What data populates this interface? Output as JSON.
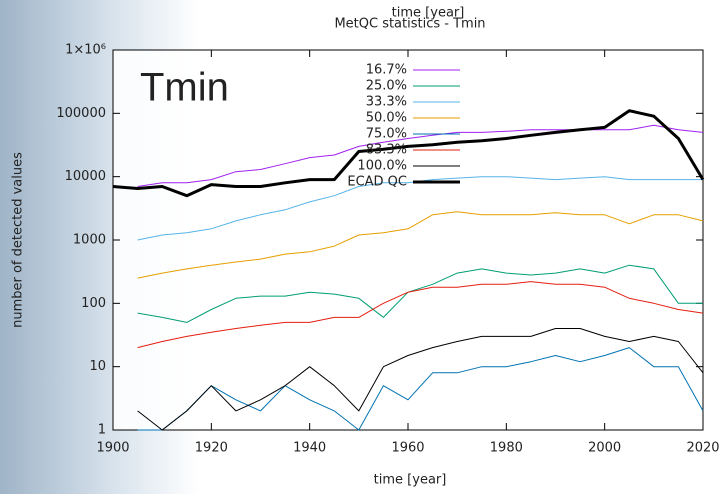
{
  "chart_data": {
    "type": "line",
    "title": "MetQC statistics - Tmin",
    "top_axis_label": "time [year]",
    "x_label": "time [year]",
    "y_label": "number of detected values",
    "annotation": "Tmin",
    "log_y": true,
    "grid": false,
    "legend": "top",
    "x": [
      1900,
      1905,
      1910,
      1915,
      1920,
      1925,
      1930,
      1935,
      1940,
      1945,
      1950,
      1955,
      1960,
      1965,
      1970,
      1975,
      1980,
      1985,
      1990,
      1995,
      2000,
      2005,
      2010,
      2015,
      2020
    ],
    "series": [
      {
        "name": "16.7%",
        "color": "#a020f0",
        "width": 1,
        "values": [
          null,
          7000,
          8000,
          8000,
          9000,
          12000,
          13000,
          16000,
          20000,
          22000,
          30000,
          35000,
          40000,
          45000,
          50000,
          50000,
          52000,
          55000,
          55000,
          55000,
          55000,
          55000,
          65000,
          55000,
          50000
        ]
      },
      {
        "name": "25.0%",
        "color": "#009e73",
        "width": 1,
        "values": [
          null,
          70,
          60,
          50,
          80,
          120,
          130,
          130,
          150,
          140,
          120,
          60,
          150,
          200,
          300,
          350,
          300,
          280,
          300,
          350,
          300,
          400,
          350,
          100,
          100
        ]
      },
      {
        "name": "33.3%",
        "color": "#56b4e9",
        "width": 1,
        "values": [
          null,
          1000,
          1200,
          1300,
          1500,
          2000,
          2500,
          3000,
          4000,
          5000,
          7000,
          8000,
          8000,
          9000,
          9500,
          10000,
          10000,
          9500,
          9000,
          9500,
          10000,
          9000,
          9000,
          9000,
          9000
        ]
      },
      {
        "name": "50.0%",
        "color": "#e69f00",
        "width": 1,
        "values": [
          null,
          250,
          300,
          350,
          400,
          450,
          500,
          600,
          650,
          800,
          1200,
          1300,
          1500,
          2500,
          2800,
          2500,
          2500,
          2500,
          2700,
          2500,
          2500,
          1800,
          2500,
          2500,
          2000
        ]
      },
      {
        "name": "75.0%",
        "color": "#0072b2",
        "width": 1,
        "values": [
          null,
          1,
          1,
          2,
          5,
          3,
          2,
          5,
          3,
          2,
          1,
          5,
          3,
          8,
          8,
          10,
          10,
          12,
          15,
          12,
          15,
          20,
          10,
          10,
          2
        ]
      },
      {
        "name": "83.3%",
        "color": "#e51e10",
        "width": 1,
        "values": [
          null,
          20,
          25,
          30,
          35,
          40,
          45,
          50,
          50,
          60,
          60,
          100,
          150,
          180,
          180,
          200,
          200,
          220,
          200,
          200,
          180,
          120,
          100,
          80,
          70
        ]
      },
      {
        "name": "100.0%",
        "color": "#000000",
        "width": 1,
        "values": [
          null,
          2,
          1,
          2,
          5,
          2,
          3,
          5,
          10,
          5,
          2,
          10,
          15,
          20,
          25,
          30,
          30,
          30,
          40,
          40,
          30,
          25,
          30,
          25,
          8
        ]
      },
      {
        "name": "ECAD QC",
        "color": "#000000",
        "width": 3,
        "values": [
          7000,
          6500,
          7000,
          5000,
          7500,
          7000,
          7000,
          8000,
          9000,
          9000,
          25000,
          27000,
          30000,
          32000,
          35000,
          37000,
          40000,
          45000,
          50000,
          55000,
          60000,
          110000,
          90000,
          40000,
          9000
        ]
      }
    ],
    "xlim": [
      1900,
      2020
    ],
    "xticks": [
      1900,
      1920,
      1940,
      1960,
      1980,
      2000,
      2020
    ],
    "ylim": [
      1,
      1000000
    ],
    "yticks": [
      1,
      10,
      100,
      1000,
      10000,
      100000,
      {
        "value": 1000000,
        "label": "1×10⁶"
      }
    ]
  }
}
